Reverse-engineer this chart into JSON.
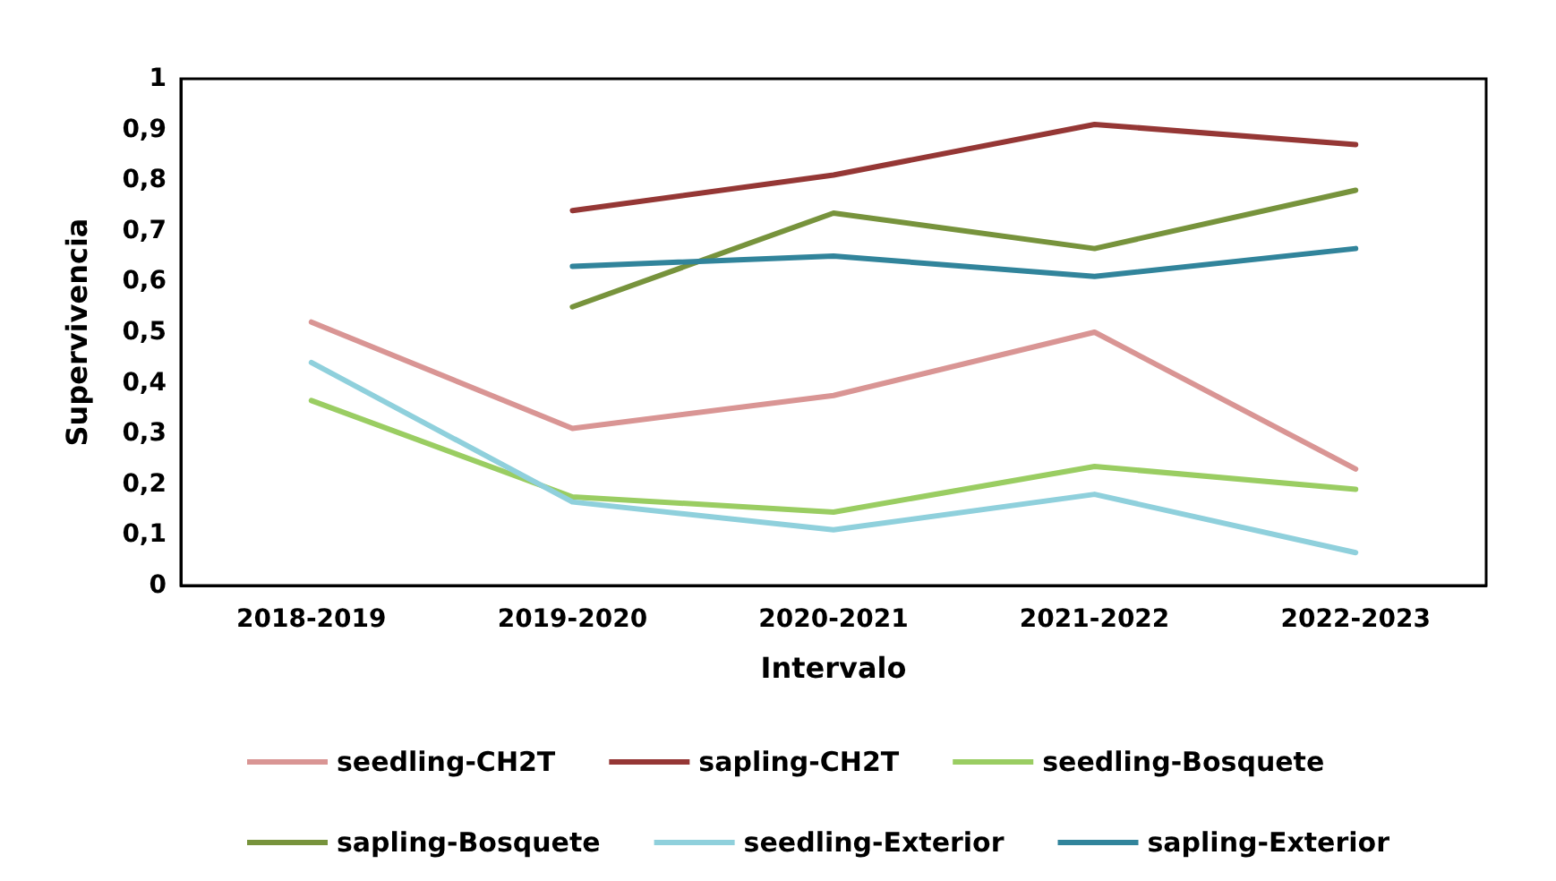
{
  "chart_data": {
    "type": "line",
    "xlabel": "Intervalo",
    "ylabel": "Supervivencia",
    "categories": [
      "2018-2019",
      "2019-2020",
      "2020-2021",
      "2021-2022",
      "2022-2023"
    ],
    "series": [
      {
        "name": "seedling-CH2T",
        "color": "#d99594",
        "values": [
          0.52,
          0.31,
          0.375,
          0.5,
          0.23
        ]
      },
      {
        "name": "sapling-CH2T",
        "color": "#953735",
        "values": [
          null,
          0.74,
          0.81,
          0.91,
          0.87
        ]
      },
      {
        "name": "seedling-Bosquete",
        "color": "#9acd62",
        "values": [
          0.365,
          0.175,
          0.145,
          0.235,
          0.19
        ]
      },
      {
        "name": "sapling-Bosquete",
        "color": "#77933c",
        "values": [
          null,
          0.55,
          0.735,
          0.665,
          0.78
        ]
      },
      {
        "name": "seedling-Exterior",
        "color": "#8fd0dc",
        "values": [
          0.44,
          0.165,
          0.11,
          0.18,
          0.065
        ]
      },
      {
        "name": "sapling-Exterior",
        "color": "#31849b",
        "values": [
          null,
          0.63,
          0.65,
          0.61,
          0.665
        ]
      }
    ],
    "ylim": [
      0,
      1
    ],
    "yticks": [
      0,
      {
        "value": 0.1,
        "label": "0,1"
      },
      {
        "value": 0.2,
        "label": "0,2"
      },
      {
        "value": 0.3,
        "label": "0,3"
      },
      {
        "value": 0.4,
        "label": "0,4"
      },
      {
        "value": 0.5,
        "label": "0,5"
      },
      {
        "value": 0.6,
        "label": "0,6"
      },
      {
        "value": 0.7,
        "label": "0,7"
      },
      {
        "value": 0.8,
        "label": "0,8"
      },
      {
        "value": 0.9,
        "label": "0,9"
      },
      1
    ],
    "grid": false,
    "legend": "bottom",
    "marker": "none",
    "line_style": "solid"
  }
}
